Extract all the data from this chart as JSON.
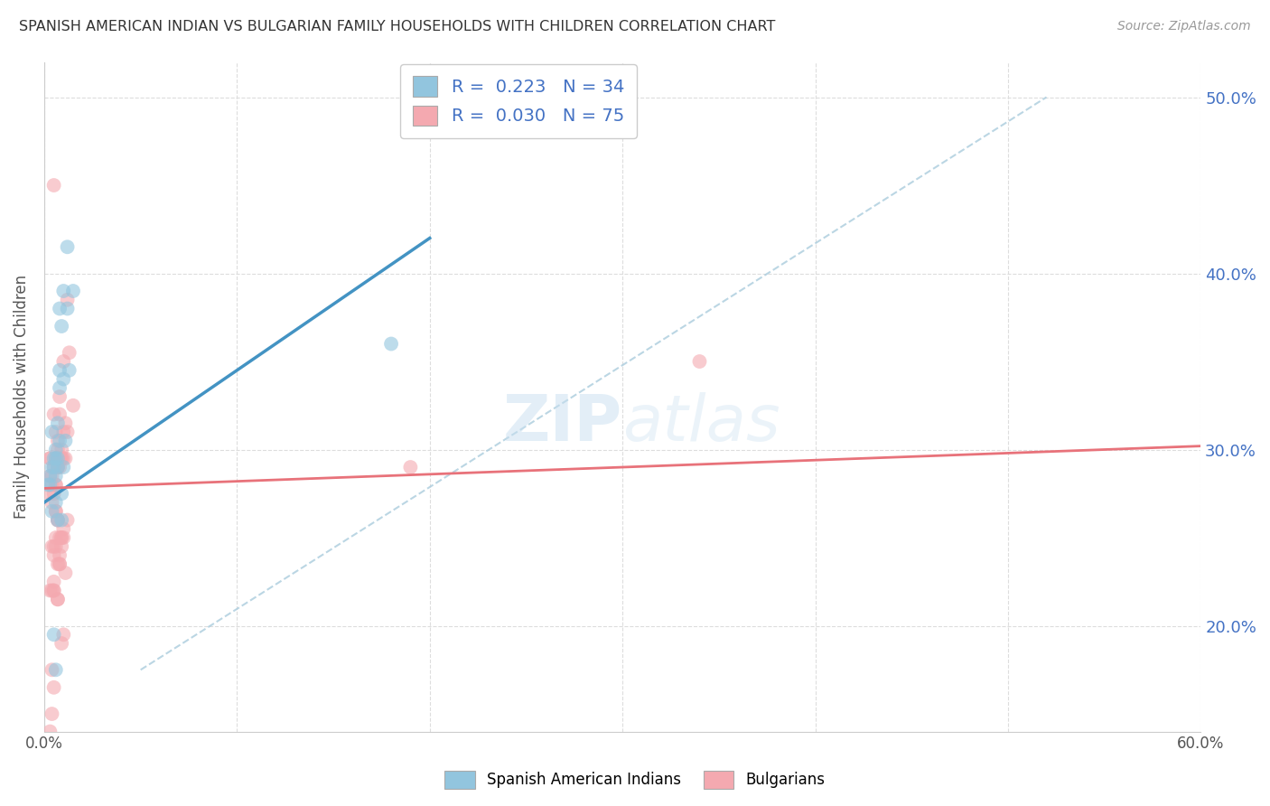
{
  "title": "SPANISH AMERICAN INDIAN VS BULGARIAN FAMILY HOUSEHOLDS WITH CHILDREN CORRELATION CHART",
  "source": "Source: ZipAtlas.com",
  "ylabel": "Family Households with Children",
  "xlim": [
    0.0,
    0.6
  ],
  "ylim": [
    0.14,
    0.52
  ],
  "legend_r": [
    0.223,
    0.03
  ],
  "legend_n": [
    34,
    75
  ],
  "blue_color": "#92c5de",
  "pink_color": "#f4a9b0",
  "blue_line_color": "#4393c3",
  "pink_line_color": "#e8727a",
  "blue_line_x": [
    0.0,
    0.2
  ],
  "blue_line_y": [
    0.27,
    0.42
  ],
  "pink_line_x": [
    0.0,
    0.6
  ],
  "pink_line_y": [
    0.278,
    0.302
  ],
  "dash_line_x": [
    0.05,
    0.52
  ],
  "dash_line_y": [
    0.175,
    0.5
  ],
  "blue_scatter_x": [
    0.003,
    0.004,
    0.005,
    0.005,
    0.006,
    0.006,
    0.006,
    0.007,
    0.007,
    0.007,
    0.008,
    0.008,
    0.008,
    0.008,
    0.009,
    0.009,
    0.009,
    0.01,
    0.01,
    0.01,
    0.011,
    0.012,
    0.012,
    0.013,
    0.004,
    0.005,
    0.006,
    0.003,
    0.002,
    0.015,
    0.007,
    0.18,
    0.006,
    0.004
  ],
  "blue_scatter_y": [
    0.285,
    0.31,
    0.295,
    0.29,
    0.3,
    0.295,
    0.27,
    0.29,
    0.315,
    0.26,
    0.335,
    0.38,
    0.305,
    0.345,
    0.37,
    0.275,
    0.26,
    0.34,
    0.29,
    0.39,
    0.305,
    0.415,
    0.38,
    0.345,
    0.265,
    0.195,
    0.285,
    0.28,
    0.28,
    0.39,
    0.295,
    0.36,
    0.175,
    0.29
  ],
  "pink_scatter_x": [
    0.003,
    0.003,
    0.003,
    0.003,
    0.004,
    0.004,
    0.004,
    0.004,
    0.005,
    0.005,
    0.005,
    0.005,
    0.005,
    0.006,
    0.006,
    0.006,
    0.006,
    0.006,
    0.007,
    0.007,
    0.007,
    0.007,
    0.007,
    0.008,
    0.008,
    0.008,
    0.008,
    0.008,
    0.009,
    0.009,
    0.009,
    0.009,
    0.009,
    0.01,
    0.01,
    0.01,
    0.01,
    0.01,
    0.011,
    0.011,
    0.011,
    0.012,
    0.012,
    0.012,
    0.013,
    0.015,
    0.003,
    0.004,
    0.005,
    0.006,
    0.007,
    0.008,
    0.006,
    0.007,
    0.008,
    0.009,
    0.005,
    0.006,
    0.007,
    0.008,
    0.009,
    0.01,
    0.005,
    0.006,
    0.007,
    0.004,
    0.003,
    0.005,
    0.19,
    0.34,
    0.007,
    0.006,
    0.005,
    0.003,
    0.004
  ],
  "pink_scatter_y": [
    0.295,
    0.285,
    0.275,
    0.22,
    0.285,
    0.27,
    0.245,
    0.22,
    0.32,
    0.29,
    0.275,
    0.245,
    0.22,
    0.31,
    0.295,
    0.28,
    0.265,
    0.25,
    0.3,
    0.295,
    0.29,
    0.26,
    0.215,
    0.33,
    0.32,
    0.295,
    0.29,
    0.235,
    0.295,
    0.295,
    0.25,
    0.245,
    0.19,
    0.35,
    0.31,
    0.295,
    0.255,
    0.195,
    0.315,
    0.295,
    0.23,
    0.385,
    0.31,
    0.26,
    0.355,
    0.325,
    0.295,
    0.28,
    0.24,
    0.265,
    0.235,
    0.25,
    0.295,
    0.305,
    0.24,
    0.3,
    0.45,
    0.295,
    0.29,
    0.235,
    0.25,
    0.25,
    0.225,
    0.28,
    0.215,
    0.175,
    0.14,
    0.165,
    0.29,
    0.35,
    0.26,
    0.245,
    0.22,
    0.13,
    0.15
  ]
}
